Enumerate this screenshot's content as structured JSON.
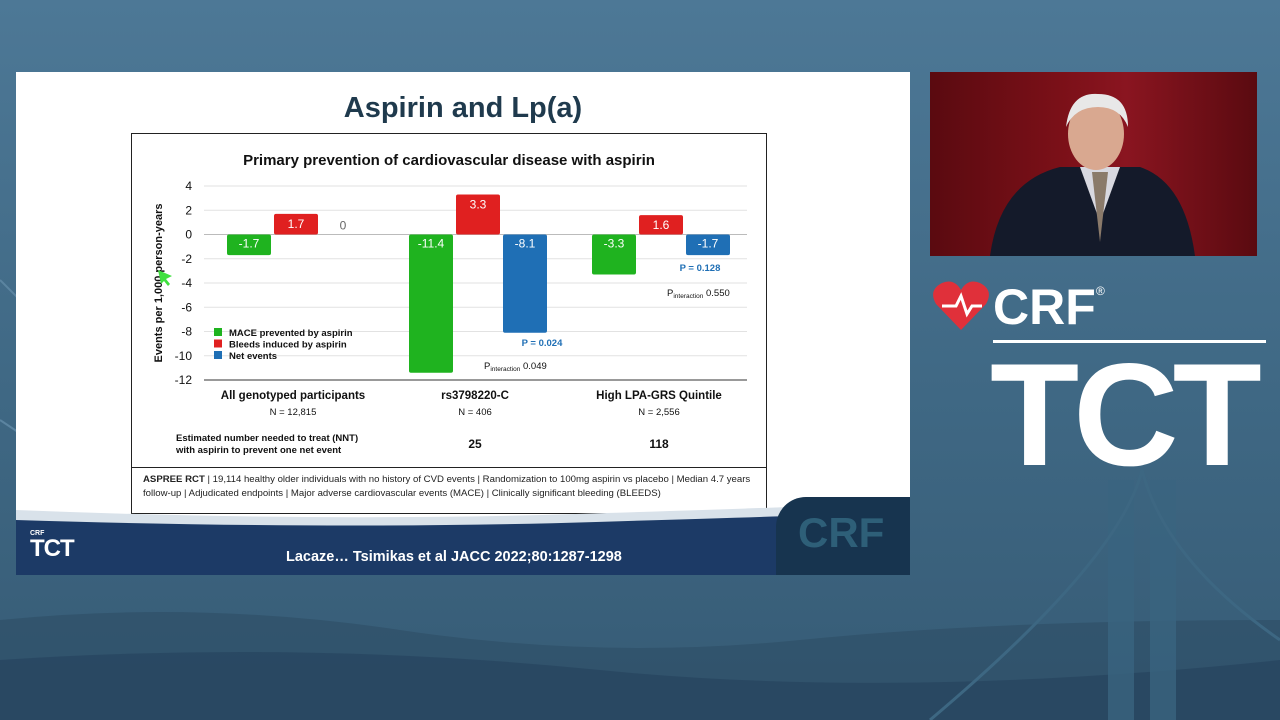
{
  "slide": {
    "title": "Aspirin and Lp(a)",
    "citation": "Lacaze… Tsimikas et al JACC 2022;80:1287-1298",
    "footer_logo_small": "CRF",
    "footer_logo_big": "TCT",
    "footer_tile_text": "CRF",
    "aspree_bold": "ASPREE RCT",
    "aspree_text": " | 19,114 healthy older individuals with no history of CVD events | Randomization to 100mg aspirin vs placebo | Median 4.7 years follow-up | Adjudicated endpoints | Major adverse cardiovascular events (MACE) | Clinically significant bleeding (BLEEDS)"
  },
  "branding": {
    "crf": "CRF",
    "registered": "®",
    "tct": "TCT"
  },
  "colors": {
    "mace": "#1fb31f",
    "bleeds": "#e02020",
    "net": "#1f6fb5",
    "title_text": "#1f3a4d"
  },
  "chart_data": {
    "type": "bar",
    "title": "Primary prevention of cardiovascular disease with aspirin",
    "ylabel": "Events per 1,000 person-years",
    "ylim": [
      -12,
      4
    ],
    "yticks": [
      4,
      2,
      0,
      -2,
      -4,
      -6,
      -8,
      -10,
      -12
    ],
    "grid": true,
    "legend_position": "lower-left",
    "categories": [
      "All genotyped participants",
      "rs3798220-C",
      "High LPA-GRS Quintile"
    ],
    "category_n": [
      "N = 12,815",
      "N = 406",
      "N = 2,556"
    ],
    "series": [
      {
        "name": "MACE prevented by aspirin",
        "color": "#1fb31f",
        "values": [
          -1.7,
          -11.4,
          -3.3
        ],
        "labels": [
          "-1.7",
          "-11.4",
          "-3.3"
        ]
      },
      {
        "name": "Bleeds induced by aspirin",
        "color": "#e02020",
        "values": [
          1.7,
          3.3,
          1.6
        ],
        "labels": [
          "1.7",
          "3.3",
          "1.6"
        ]
      },
      {
        "name": "Net events",
        "color": "#1f6fb5",
        "values": [
          0,
          -8.1,
          -1.7
        ],
        "labels": [
          "0",
          "-8.1",
          "-1.7"
        ]
      }
    ],
    "annotations": {
      "p_values": [
        "",
        "P = 0.024",
        "P = 0.128"
      ],
      "p_interaction_prefix": "P",
      "p_interaction_sub": "interaction",
      "p_interaction_values": [
        "",
        "0.049",
        "0.550"
      ]
    },
    "nnt_label_line1": "Estimated number needed to treat (NNT)",
    "nnt_label_line2": "with aspirin to prevent one net event",
    "nnt_values": [
      "",
      "25",
      "118"
    ]
  }
}
